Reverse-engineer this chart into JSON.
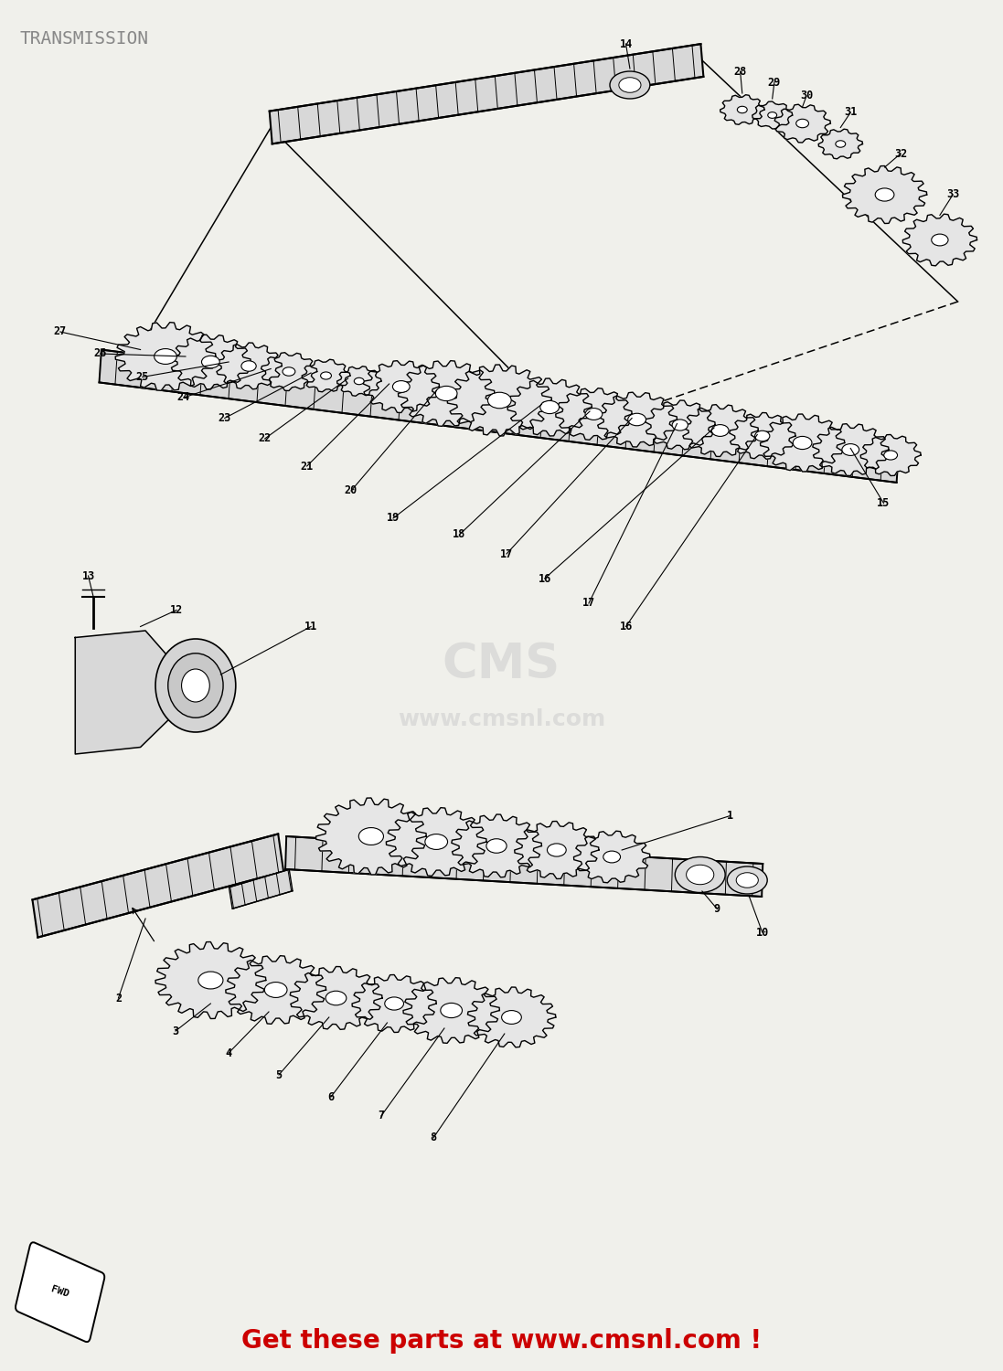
{
  "title": "TRANSMISSION",
  "title_color": "#888888",
  "title_fontsize": 14,
  "background_color": "#f0f0eb",
  "footer_text": "Get these parts at www.cmsnl.com !",
  "footer_color": "#cc0000",
  "footer_fontsize": 20,
  "watermark_line1": "CMS",
  "watermark_line2": "www.cmsnl.com",
  "watermark_color": "#cccccc",
  "fwd_text": "FWD"
}
